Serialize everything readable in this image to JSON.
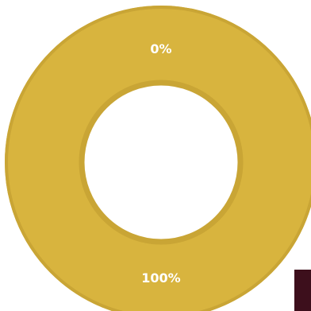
{
  "chart_data": {
    "type": "pie",
    "variant": "donut",
    "slices": [
      {
        "label": "0%",
        "value": 0,
        "color": "#3d0f1c"
      },
      {
        "label": "100%",
        "value": 100,
        "color": "#d8b43e"
      }
    ],
    "ring_outline_color": "#c9a535",
    "labels": {
      "top": "0%",
      "bottom": "100%"
    }
  }
}
